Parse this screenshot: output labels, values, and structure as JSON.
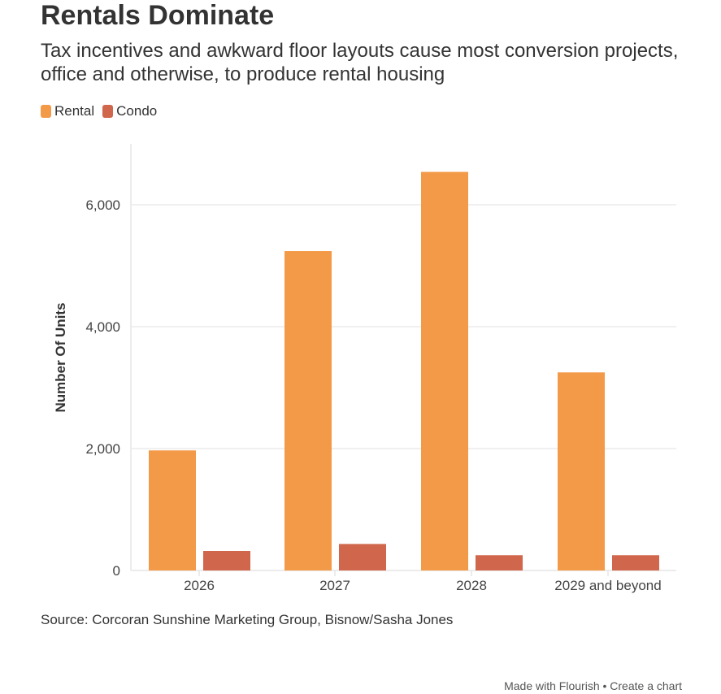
{
  "chart_data": {
    "type": "bar",
    "title": "Rentals Dominate",
    "subtitle": "Tax incentives and awkward floor layouts cause most conversion projects, office and otherwise, to produce rental housing",
    "categories": [
      "2026",
      "2027",
      "2028",
      "2029 and beyond"
    ],
    "series": [
      {
        "name": "Rental",
        "color": "#f39a48",
        "values": [
          1970,
          5240,
          6540,
          3250
        ]
      },
      {
        "name": "Condo",
        "color": "#d0664c",
        "values": [
          320,
          435,
          250,
          250
        ]
      }
    ],
    "xlabel": "",
    "ylabel": "Number Of Units",
    "ylim": [
      0,
      7000
    ],
    "yticks": [
      0,
      2000,
      4000,
      6000
    ],
    "ytick_labels": [
      "0",
      "2,000",
      "4,000",
      "6,000"
    ],
    "grid": true,
    "legend": "top-left"
  },
  "source": "Source: Corcoran Sunshine Marketing Group, Bisnow/Sasha Jones",
  "footer": "Made with Flourish • Create a chart"
}
